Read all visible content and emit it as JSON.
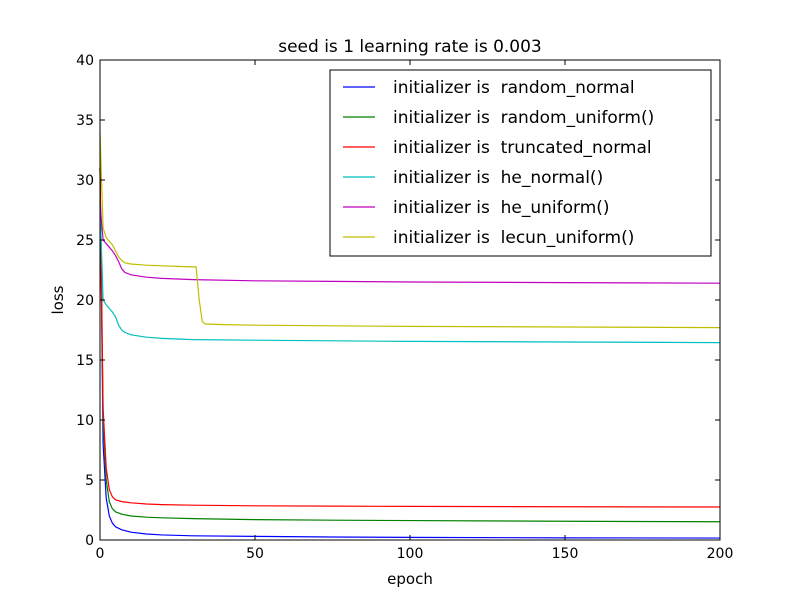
{
  "chart_data": {
    "type": "line",
    "title": "seed is 1 learning rate is 0.003",
    "xlabel": "epoch",
    "ylabel": "loss",
    "xlim": [
      0,
      200
    ],
    "ylim": [
      0,
      40
    ],
    "xticks": [
      0,
      50,
      100,
      150,
      200
    ],
    "yticks": [
      0,
      5,
      10,
      15,
      20,
      25,
      30,
      35,
      40
    ],
    "grid": false,
    "legend_position": "top-right",
    "series": [
      {
        "name": "initializer is  random_normal",
        "color": "#0000ff",
        "points": [
          [
            0,
            31
          ],
          [
            1,
            8
          ],
          [
            2,
            3.5
          ],
          [
            3,
            2
          ],
          [
            4,
            1.4
          ],
          [
            5,
            1.1
          ],
          [
            7,
            0.85
          ],
          [
            10,
            0.65
          ],
          [
            15,
            0.5
          ],
          [
            20,
            0.42
          ],
          [
            30,
            0.35
          ],
          [
            50,
            0.3
          ],
          [
            75,
            0.25
          ],
          [
            100,
            0.22
          ],
          [
            150,
            0.18
          ],
          [
            200,
            0.16
          ]
        ]
      },
      {
        "name": "initializer is  random_uniform()",
        "color": "#008000",
        "points": [
          [
            0,
            31
          ],
          [
            1,
            10
          ],
          [
            2,
            5
          ],
          [
            3,
            3.2
          ],
          [
            4,
            2.6
          ],
          [
            5,
            2.35
          ],
          [
            7,
            2.15
          ],
          [
            10,
            2
          ],
          [
            15,
            1.9
          ],
          [
            20,
            1.85
          ],
          [
            30,
            1.78
          ],
          [
            50,
            1.7
          ],
          [
            75,
            1.65
          ],
          [
            100,
            1.62
          ],
          [
            150,
            1.56
          ],
          [
            200,
            1.52
          ]
        ]
      },
      {
        "name": "initializer is  truncated_normal",
        "color": "#ff0000",
        "points": [
          [
            0,
            31
          ],
          [
            1,
            11
          ],
          [
            2,
            6
          ],
          [
            3,
            4.2
          ],
          [
            4,
            3.6
          ],
          [
            5,
            3.35
          ],
          [
            7,
            3.2
          ],
          [
            10,
            3.1
          ],
          [
            15,
            3.0
          ],
          [
            20,
            2.95
          ],
          [
            30,
            2.9
          ],
          [
            50,
            2.85
          ],
          [
            75,
            2.82
          ],
          [
            100,
            2.8
          ],
          [
            150,
            2.77
          ],
          [
            200,
            2.75
          ]
        ]
      },
      {
        "name": "initializer is  he_normal()",
        "color": "#00bfbf",
        "points": [
          [
            0,
            28
          ],
          [
            1,
            20
          ],
          [
            2,
            19.6
          ],
          [
            3,
            19.3
          ],
          [
            4,
            19.0
          ],
          [
            5,
            18.6
          ],
          [
            6,
            17.9
          ],
          [
            7,
            17.5
          ],
          [
            8,
            17.3
          ],
          [
            10,
            17.1
          ],
          [
            15,
            16.9
          ],
          [
            20,
            16.8
          ],
          [
            30,
            16.7
          ],
          [
            50,
            16.65
          ],
          [
            75,
            16.6
          ],
          [
            100,
            16.55
          ],
          [
            150,
            16.5
          ],
          [
            200,
            16.45
          ]
        ]
      },
      {
        "name": "initializer is  he_uniform()",
        "color": "#bf00bf",
        "points": [
          [
            0,
            28
          ],
          [
            1,
            25
          ],
          [
            2,
            24.7
          ],
          [
            3,
            24.4
          ],
          [
            4,
            24.1
          ],
          [
            5,
            23.7
          ],
          [
            6,
            23.2
          ],
          [
            7,
            22.6
          ],
          [
            8,
            22.3
          ],
          [
            10,
            22.1
          ],
          [
            15,
            21.9
          ],
          [
            20,
            21.8
          ],
          [
            30,
            21.7
          ],
          [
            50,
            21.6
          ],
          [
            75,
            21.55
          ],
          [
            100,
            21.5
          ],
          [
            150,
            21.45
          ],
          [
            200,
            21.4
          ]
        ]
      },
      {
        "name": "initializer is  lecun_uniform()",
        "color": "#bfbf00",
        "points": [
          [
            0,
            34
          ],
          [
            1,
            26
          ],
          [
            2,
            25.2
          ],
          [
            3,
            24.9
          ],
          [
            4,
            24.6
          ],
          [
            5,
            24.1
          ],
          [
            6,
            23.6
          ],
          [
            7,
            23.3
          ],
          [
            8,
            23.1
          ],
          [
            10,
            23.0
          ],
          [
            15,
            22.9
          ],
          [
            20,
            22.85
          ],
          [
            25,
            22.8
          ],
          [
            31,
            22.75
          ],
          [
            32,
            20
          ],
          [
            33,
            18.2
          ],
          [
            34,
            18.0
          ],
          [
            40,
            17.95
          ],
          [
            50,
            17.9
          ],
          [
            75,
            17.85
          ],
          [
            100,
            17.8
          ],
          [
            150,
            17.75
          ],
          [
            200,
            17.7
          ]
        ]
      }
    ]
  }
}
